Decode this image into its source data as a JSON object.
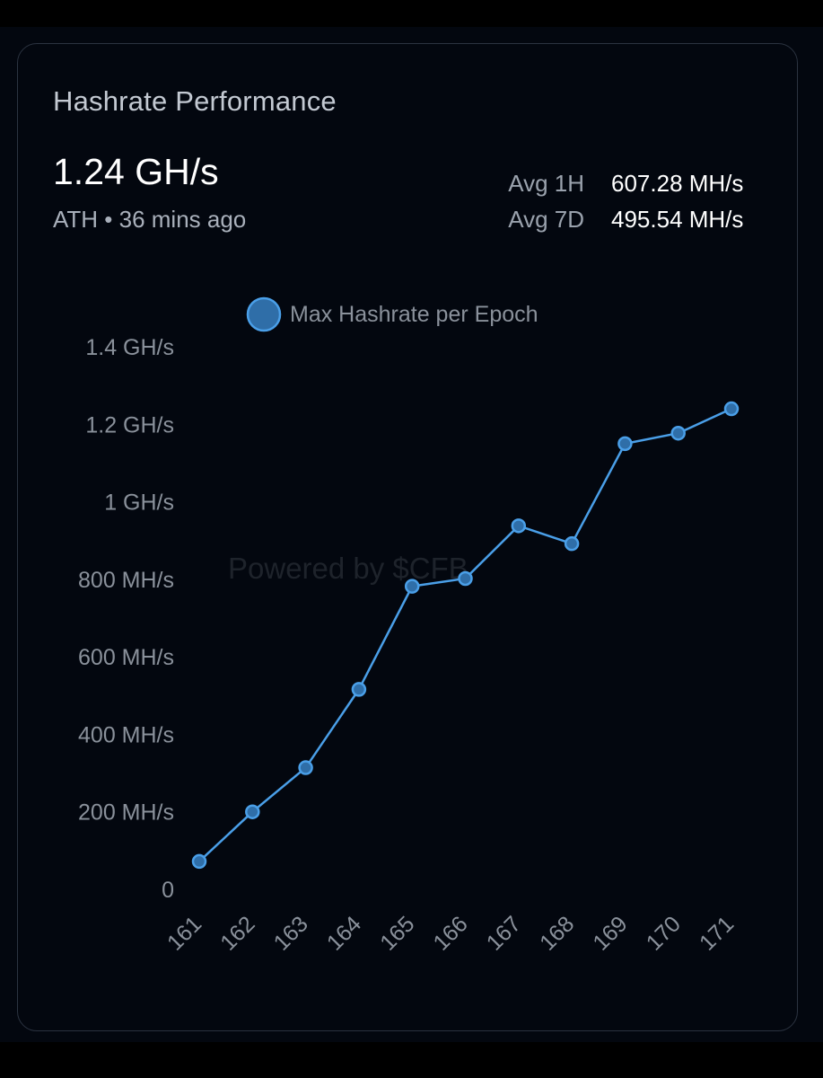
{
  "card": {
    "title": "Hashrate Performance",
    "current_value": "1.24 GH/s",
    "ath_note": "ATH • 36 mins ago",
    "stats": [
      {
        "label": "Avg 1H",
        "value": "607.28 MH/s"
      },
      {
        "label": "Avg 7D",
        "value": "495.54 MH/s"
      }
    ]
  },
  "watermark": "Powered by $CFB",
  "colors": {
    "accent": "#4a9fe8",
    "point_fill": "#2f6ea8",
    "background": "#03070f",
    "axis_text": "#8a919b"
  },
  "chart_data": {
    "type": "line",
    "legend": "Max Hashrate per Epoch",
    "legend_position": "top",
    "grid": false,
    "x": [
      "161",
      "162",
      "163",
      "164",
      "165",
      "166",
      "167",
      "168",
      "169",
      "170",
      "171"
    ],
    "series": [
      {
        "name": "Max Hashrate per Epoch",
        "unit": "MH/s",
        "values": [
          72,
          200,
          314,
          516,
          782,
          802,
          938,
          892,
          1150,
          1177,
          1240
        ]
      }
    ],
    "y_ticks": [
      {
        "value": 0,
        "label": "0"
      },
      {
        "value": 200,
        "label": "200 MH/s"
      },
      {
        "value": 400,
        "label": "400 MH/s"
      },
      {
        "value": 600,
        "label": "600 MH/s"
      },
      {
        "value": 800,
        "label": "800 MH/s"
      },
      {
        "value": 1000,
        "label": "1 GH/s"
      },
      {
        "value": 1200,
        "label": "1.2 GH/s"
      },
      {
        "value": 1400,
        "label": "1.4 GH/s"
      }
    ],
    "ylim": [
      0,
      1400
    ]
  }
}
